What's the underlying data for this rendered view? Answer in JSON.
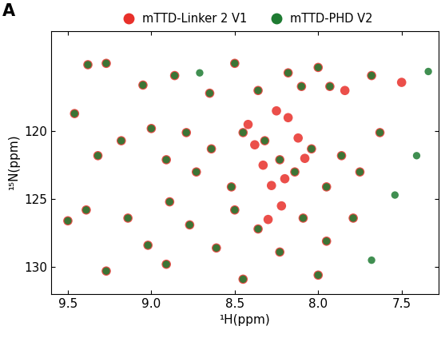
{
  "chart_data": {
    "type": "scatter",
    "annotations": [
      {
        "text": "A"
      }
    ],
    "x_label": "¹H(ppm)",
    "y_label": "¹⁵N(ppm)",
    "xlim": [
      9.6,
      7.28
    ],
    "ylim": [
      132.0,
      112.6
    ],
    "xticks": [
      9.5,
      9.0,
      8.5,
      8.0,
      7.5
    ],
    "yticks": [
      120,
      125,
      130
    ],
    "grid": false,
    "legend": "top",
    "series": [
      {
        "name": "mTTD-Linker 2 V1",
        "color": "#e8302a",
        "marker": "o",
        "x": [
          9.38,
          9.27,
          9.05,
          8.86,
          8.65,
          8.5,
          8.36,
          8.18,
          8.1,
          8.0,
          7.93,
          7.84,
          7.68,
          7.5,
          9.46,
          9.32,
          9.18,
          9.0,
          8.91,
          8.79,
          8.73,
          8.64,
          8.52,
          8.45,
          8.32,
          8.23,
          8.14,
          8.04,
          7.95,
          7.86,
          7.75,
          7.63,
          9.5,
          9.39,
          9.14,
          9.02,
          8.89,
          8.77,
          8.61,
          8.5,
          8.36,
          8.23,
          8.09,
          7.95,
          7.79,
          9.27,
          8.91,
          8.45,
          8.0,
          8.42,
          8.38,
          8.33,
          8.28,
          8.22,
          8.18,
          8.12,
          8.08,
          8.3,
          8.25,
          8.2
        ],
        "values": [
          115.1,
          115.0,
          116.6,
          115.9,
          117.2,
          115.0,
          117.0,
          115.7,
          116.7,
          115.3,
          116.7,
          117.0,
          115.9,
          116.4,
          118.7,
          121.8,
          120.7,
          119.8,
          122.1,
          120.1,
          123.0,
          121.3,
          124.1,
          120.1,
          120.7,
          122.1,
          123.0,
          121.3,
          124.1,
          121.8,
          123.0,
          120.1,
          126.6,
          125.8,
          126.4,
          128.4,
          125.2,
          126.9,
          128.6,
          125.8,
          127.2,
          128.9,
          126.4,
          128.1,
          126.4,
          130.3,
          129.8,
          130.9,
          130.6,
          119.5,
          121.0,
          122.5,
          124.0,
          125.5,
          119.0,
          120.5,
          122.0,
          126.5,
          118.5,
          123.5
        ]
      },
      {
        "name": "mTTD-PHD V2",
        "color": "#1e7b32",
        "marker": "o",
        "x": [
          9.38,
          9.27,
          9.05,
          8.86,
          8.71,
          8.65,
          8.5,
          8.36,
          8.18,
          8.1,
          8.0,
          7.93,
          7.68,
          7.34,
          9.46,
          9.32,
          9.18,
          9.0,
          8.91,
          8.79,
          8.73,
          8.64,
          8.52,
          8.45,
          8.32,
          8.23,
          8.14,
          8.04,
          7.95,
          7.86,
          7.75,
          7.63,
          7.54,
          7.41,
          9.5,
          9.39,
          9.14,
          9.02,
          8.89,
          8.77,
          8.61,
          8.5,
          8.36,
          8.23,
          8.09,
          7.95,
          7.79,
          7.68,
          9.27,
          8.91,
          8.45,
          8.0
        ],
        "values": [
          115.1,
          115.0,
          116.6,
          115.9,
          115.7,
          117.2,
          115.0,
          117.0,
          115.7,
          116.7,
          115.3,
          116.7,
          115.9,
          115.6,
          118.7,
          121.8,
          120.7,
          119.8,
          122.1,
          120.1,
          123.0,
          121.3,
          124.1,
          120.1,
          120.7,
          122.1,
          123.0,
          121.3,
          124.1,
          121.8,
          123.0,
          120.1,
          124.7,
          121.8,
          126.6,
          125.8,
          126.4,
          128.4,
          125.2,
          126.9,
          128.6,
          125.8,
          127.2,
          128.9,
          126.4,
          128.1,
          126.4,
          129.5,
          130.3,
          129.8,
          130.9,
          130.6
        ]
      }
    ]
  }
}
